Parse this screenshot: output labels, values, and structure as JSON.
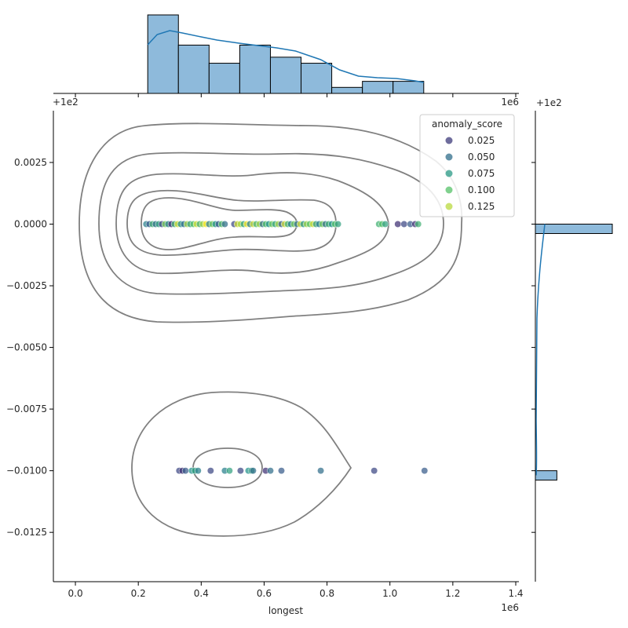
{
  "chart_data": {
    "type": "scatter",
    "title": "",
    "xlabel": "longest",
    "ylabel": "",
    "x_offset_label": "1e6",
    "y_offset_label": "+1e2",
    "top_marginal_offset_label": "+1e2",
    "top_marginal_offset_label_right": "1e6",
    "right_marginal_offset_label": "+1e2",
    "xlim": [
      -70000,
      1410000
    ],
    "ylim": [
      -0.0145,
      0.0046
    ],
    "x_ticks": [
      0,
      200000,
      400000,
      600000,
      800000,
      1000000,
      1200000,
      1400000
    ],
    "x_tick_labels": [
      "0.0",
      "0.2",
      "0.4",
      "0.6",
      "0.8",
      "1.0",
      "1.2",
      "1.4"
    ],
    "y_ticks": [
      0.0025,
      0.0,
      -0.0025,
      -0.005,
      -0.0075,
      -0.01,
      -0.0125
    ],
    "y_tick_labels": [
      "0.0025",
      "0.0000",
      "−0.0025",
      "−0.0050",
      "−0.0075",
      "−0.0100",
      "−0.0125"
    ],
    "grid": false,
    "legend": {
      "title": "anomaly_score",
      "placement": "top-right",
      "entries": [
        {
          "label": "0.025",
          "value": 0.025
        },
        {
          "label": "0.050",
          "value": 0.05
        },
        {
          "label": "0.075",
          "value": 0.075
        },
        {
          "label": "0.100",
          "value": 0.1
        },
        {
          "label": "0.125",
          "value": 0.125
        }
      ]
    },
    "colormap": "viridis",
    "hue_range": [
      0.0,
      0.14
    ],
    "series": [
      {
        "y": 0.0,
        "points": [
          [
            225000,
            0.06
          ],
          [
            235000,
            0.04
          ],
          [
            245000,
            0.09
          ],
          [
            255000,
            0.05
          ],
          [
            265000,
            0.08
          ],
          [
            275000,
            0.03
          ],
          [
            285000,
            0.11
          ],
          [
            295000,
            0.06
          ],
          [
            305000,
            0.02
          ],
          [
            315000,
            0.09
          ],
          [
            325000,
            0.13
          ],
          [
            335000,
            0.07
          ],
          [
            345000,
            0.05
          ],
          [
            355000,
            0.12
          ],
          [
            365000,
            0.08
          ],
          [
            375000,
            0.1
          ],
          [
            385000,
            0.13
          ],
          [
            395000,
            0.09
          ],
          [
            405000,
            0.12
          ],
          [
            415000,
            0.14
          ],
          [
            425000,
            0.06
          ],
          [
            435000,
            0.11
          ],
          [
            445000,
            0.07
          ],
          [
            455000,
            0.04
          ],
          [
            465000,
            0.1
          ],
          [
            475000,
            0.05
          ],
          [
            505000,
            0.03
          ],
          [
            515000,
            0.13
          ],
          [
            525000,
            0.12
          ],
          [
            535000,
            0.08
          ],
          [
            545000,
            0.14
          ],
          [
            555000,
            0.06
          ],
          [
            565000,
            0.13
          ],
          [
            575000,
            0.09
          ],
          [
            585000,
            0.12
          ],
          [
            595000,
            0.05
          ],
          [
            605000,
            0.1
          ],
          [
            615000,
            0.07
          ],
          [
            625000,
            0.11
          ],
          [
            635000,
            0.08
          ],
          [
            645000,
            0.12
          ],
          [
            655000,
            0.04
          ],
          [
            665000,
            0.13
          ],
          [
            675000,
            0.09
          ],
          [
            685000,
            0.06
          ],
          [
            695000,
            0.11
          ],
          [
            705000,
            0.05
          ],
          [
            715000,
            0.13
          ],
          [
            725000,
            0.07
          ],
          [
            735000,
            0.12
          ],
          [
            745000,
            0.1
          ],
          [
            755000,
            0.13
          ],
          [
            765000,
            0.08
          ],
          [
            775000,
            0.06
          ],
          [
            785000,
            0.11
          ],
          [
            795000,
            0.05
          ],
          [
            805000,
            0.09
          ],
          [
            815000,
            0.07
          ],
          [
            825000,
            0.1
          ],
          [
            835000,
            0.08
          ],
          [
            965000,
            0.09
          ],
          [
            975000,
            0.1
          ],
          [
            985000,
            0.08
          ],
          [
            1025000,
            0.02
          ],
          [
            1045000,
            0.03
          ],
          [
            1065000,
            0.04
          ],
          [
            1080000,
            0.02
          ],
          [
            1090000,
            0.09
          ]
        ]
      },
      {
        "y": -0.01,
        "points": [
          [
            330000,
            0.03
          ],
          [
            340000,
            0.02
          ],
          [
            350000,
            0.04
          ],
          [
            370000,
            0.07
          ],
          [
            380000,
            0.08
          ],
          [
            390000,
            0.06
          ],
          [
            430000,
            0.03
          ],
          [
            475000,
            0.06
          ],
          [
            490000,
            0.08
          ],
          [
            525000,
            0.03
          ],
          [
            550000,
            0.07
          ],
          [
            560000,
            0.08
          ],
          [
            565000,
            0.05
          ],
          [
            605000,
            0.02
          ],
          [
            620000,
            0.05
          ],
          [
            655000,
            0.04
          ],
          [
            780000,
            0.05
          ],
          [
            950000,
            0.03
          ],
          [
            1110000,
            0.04
          ]
        ]
      }
    ],
    "kde_contours_scatter": [
      {
        "level": 1,
        "ring": [
          [
            0.003,
            0.0
          ],
          [
            0.0055,
            0.002
          ],
          [
            0.008,
            0.0028
          ],
          [
            0.01,
            0.0035
          ],
          [
            0.012,
            0.004
          ],
          [
            0.02,
            0.0043
          ],
          [
            0.03,
            0.0044
          ],
          [
            0.04,
            0.0045
          ],
          [
            0.055,
            0.0045
          ],
          [
            0.07,
            0.0044
          ],
          [
            0.085,
            0.0043
          ],
          [
            0.1,
            0.0045
          ],
          [
            0.12,
            0.0044
          ],
          [
            0.14,
            0.0042
          ],
          [
            0.16,
            0.004
          ],
          [
            0.18,
            0.0041
          ],
          [
            0.2,
            0.0042
          ]
        ]
      }
    ],
    "top_marginal": {
      "type": "histogram",
      "bin_edges": [
        230000,
        327500,
        425000,
        522500,
        620000,
        717500,
        815000,
        912500,
        1010000,
        1107500
      ],
      "counts": [
        13,
        8,
        5,
        8,
        6,
        5,
        1,
        2,
        2
      ],
      "kde": [
        [
          230000,
          0.62
        ],
        [
          260000,
          0.75
        ],
        [
          300000,
          0.8
        ],
        [
          340000,
          0.77
        ],
        [
          400000,
          0.72
        ],
        [
          450000,
          0.68
        ],
        [
          520000,
          0.64
        ],
        [
          580000,
          0.61
        ],
        [
          640000,
          0.58
        ],
        [
          700000,
          0.54
        ],
        [
          780000,
          0.43
        ],
        [
          840000,
          0.3
        ],
        [
          900000,
          0.22
        ],
        [
          960000,
          0.2
        ],
        [
          1020000,
          0.19
        ],
        [
          1080000,
          0.16
        ],
        [
          1107500,
          0.14
        ]
      ]
    },
    "right_marginal": {
      "type": "histogram",
      "bins": [
        {
          "y_low": -0.0003,
          "y_high": 0.0,
          "count": 68
        },
        {
          "y_low": -0.0103,
          "y_high": -0.01,
          "count": 19
        }
      ],
      "kde_peak_y": 0.0
    }
  }
}
